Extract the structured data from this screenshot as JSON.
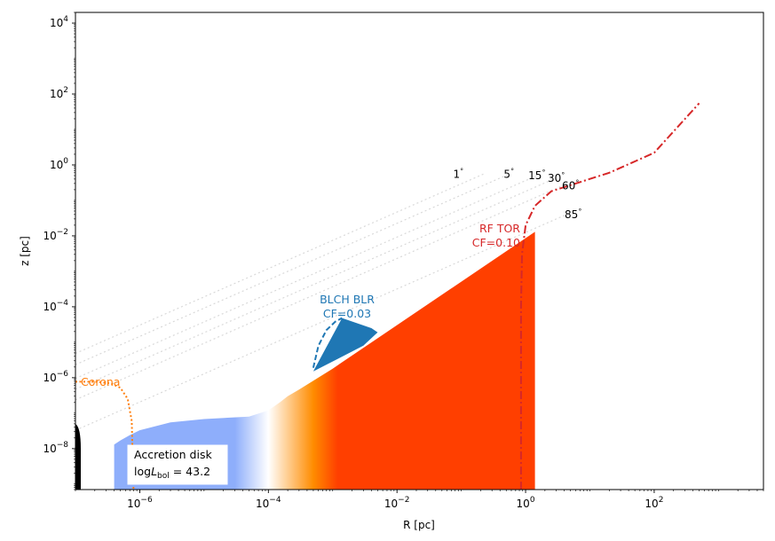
{
  "chart_data": {
    "type": "line",
    "title": "",
    "xlabel": "R [pc]",
    "ylabel": "z [pc]",
    "xscale": "log",
    "yscale": "log",
    "xlim": [
      1e-07,
      5000
    ],
    "ylim": [
      7e-10,
      20000
    ],
    "grid": false,
    "x_ticks": [
      {
        "value": 1e-06,
        "base": "10",
        "exp": "−6"
      },
      {
        "value": 0.0001,
        "base": "10",
        "exp": "−4"
      },
      {
        "value": 0.01,
        "base": "10",
        "exp": "−2"
      },
      {
        "value": 1,
        "base": "10",
        "exp": "0"
      },
      {
        "value": 100,
        "base": "10",
        "exp": "2"
      }
    ],
    "y_ticks": [
      {
        "value": 1e-08,
        "base": "10",
        "exp": "−8"
      },
      {
        "value": 1e-06,
        "base": "10",
        "exp": "−6"
      },
      {
        "value": 0.0001,
        "base": "10",
        "exp": "−4"
      },
      {
        "value": 0.01,
        "base": "10",
        "exp": "−2"
      },
      {
        "value": 1,
        "base": "10",
        "exp": "0"
      },
      {
        "value": 100,
        "base": "10",
        "exp": "2"
      },
      {
        "value": 10000,
        "base": "10",
        "exp": "4"
      }
    ],
    "sightlines": [
      {
        "label": "1°",
        "r_end": 0.22,
        "z_end": 0.55
      },
      {
        "label": "5°",
        "r_end": 0.55,
        "z_end": 0.55
      },
      {
        "label": "15°",
        "r_end": 1.5,
        "z_end": 0.5
      },
      {
        "label": "30°",
        "r_end": 2.9,
        "z_end": 0.42
      },
      {
        "label": "60°",
        "r_end": 4.5,
        "z_end": 0.3
      },
      {
        "label": "85°",
        "r_end": 5.0,
        "z_end": 0.045
      }
    ],
    "sightline_label_positions": [
      {
        "label": "1°",
        "r": 0.09,
        "z": 0.55
      },
      {
        "label": "5°",
        "r": 0.55,
        "z": 0.55
      },
      {
        "label": "15°",
        "r": 1.5,
        "z": 0.5
      },
      {
        "label": "30°",
        "r": 3.0,
        "z": 0.42
      },
      {
        "label": "60°",
        "r": 5.0,
        "z": 0.26
      },
      {
        "label": "85°",
        "r": 5.5,
        "z": 0.04
      }
    ],
    "sightline_color": "#d9d9d9",
    "accretion_disk": {
      "label_line1": "Accretion disk",
      "label_line2_prefix": "log",
      "label_line2_L": "L",
      "label_line2_sub": "bol",
      "label_line2_suffix": " = 43.2",
      "r_inner": 4e-07,
      "r_outer": 1.4,
      "top_profile": [
        [
          4e-07,
          1.3e-08
        ],
        [
          5e-07,
          1.7e-08
        ],
        [
          7e-07,
          2.4e-08
        ],
        [
          1e-06,
          3.3e-08
        ],
        [
          3e-06,
          5.5e-08
        ],
        [
          1e-05,
          6.8e-08
        ],
        [
          5e-05,
          8e-08
        ],
        [
          0.0001,
          1.2e-07
        ],
        [
          0.00015,
          2e-07
        ],
        [
          0.0002,
          3e-07
        ],
        [
          0.0003,
          4.6e-07
        ],
        [
          0.001,
          1.8e-06
        ],
        [
          1.4,
          0.013
        ]
      ],
      "colors": {
        "blue": "#8eaefb",
        "white": "#ffffff",
        "orange": "#ff8c00",
        "red": "#ff3f00"
      },
      "gradient_positions": {
        "blue_until": 3e-05,
        "white_at": 0.0001,
        "orange_at": 0.0005,
        "red_from": 0.0012
      }
    },
    "corona": {
      "label": "Corona",
      "color": "#ff7f0e",
      "points": [
        [
          1e-07,
          7.7e-07
        ],
        [
          2e-07,
          7.7e-07
        ],
        [
          3.5e-07,
          7e-07
        ],
        [
          5e-07,
          5.2e-07
        ],
        [
          6.5e-07,
          2.5e-07
        ],
        [
          7.5e-07,
          6e-08
        ],
        [
          8e-07,
          7e-10
        ]
      ]
    },
    "blch_blr": {
      "label": "BLCH BLR",
      "cf_label": "CF=0.03",
      "color": "#1f77b4",
      "region": [
        [
          0.0005,
          1.5e-06
        ],
        [
          0.0014,
          4.8e-05
        ],
        [
          0.004,
          2.5e-05
        ],
        [
          0.005,
          1.9e-05
        ],
        [
          0.003,
          8e-06
        ],
        [
          0.0005,
          1.5e-06
        ]
      ],
      "dashed_edge": [
        [
          0.0005,
          1.9e-06
        ],
        [
          0.0006,
          8e-06
        ],
        [
          0.0008,
          2.2e-05
        ],
        [
          0.0011,
          3.8e-05
        ],
        [
          0.0014,
          4.8e-05
        ]
      ]
    },
    "rf_tor": {
      "label": "RF TOR",
      "cf_label": "CF=0.10",
      "color": "#d62728",
      "curve": [
        [
          0.85,
          7e-10
        ],
        [
          0.85,
          0.0001
        ],
        [
          0.88,
          0.003
        ],
        [
          1.0,
          0.02
        ],
        [
          1.4,
          0.07
        ],
        [
          2.5,
          0.18
        ],
        [
          6,
          0.3
        ],
        [
          20,
          0.6
        ],
        [
          100,
          2.2
        ],
        [
          500,
          55
        ]
      ]
    },
    "black_hole_color": "#000000"
  }
}
